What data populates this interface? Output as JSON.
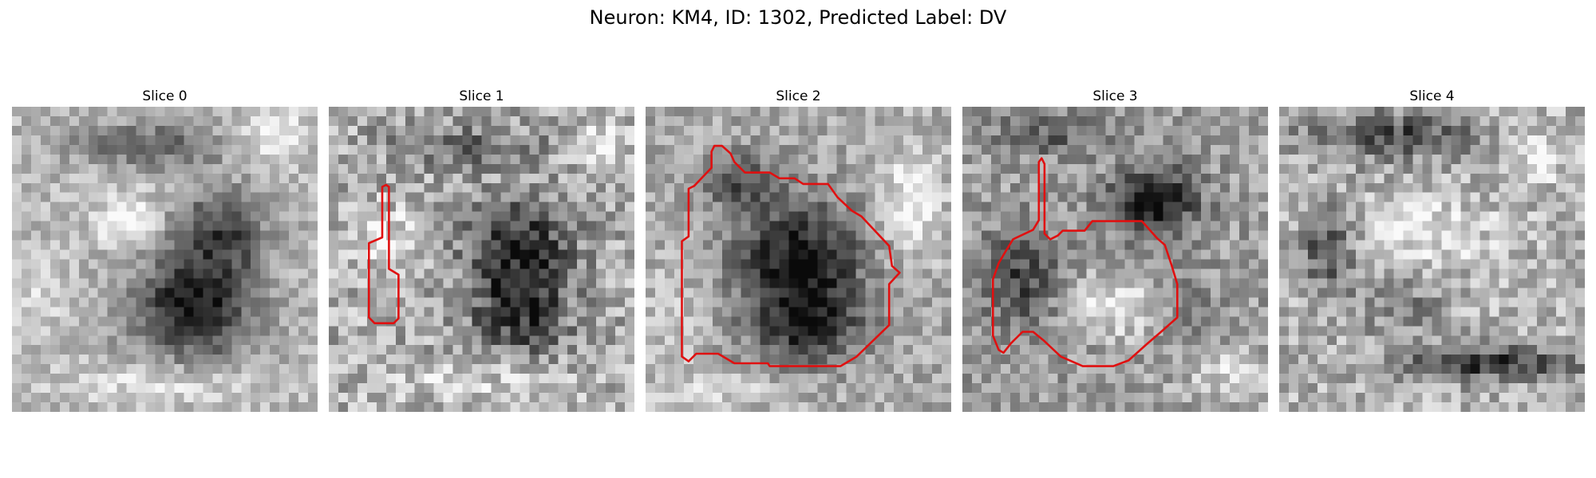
{
  "figure": {
    "title": "Neuron: KM4, ID: 1302, Predicted Label: DV"
  },
  "colors": {
    "contour": "#e01010",
    "background": "#ffffff"
  },
  "panels": [
    {
      "title": "Slice 0",
      "has_contour": false
    },
    {
      "title": "Slice 1",
      "has_contour": true
    },
    {
      "title": "Slice 2",
      "has_contour": true
    },
    {
      "title": "Slice 3",
      "has_contour": true
    },
    {
      "title": "Slice 4",
      "has_contour": false
    }
  ]
}
